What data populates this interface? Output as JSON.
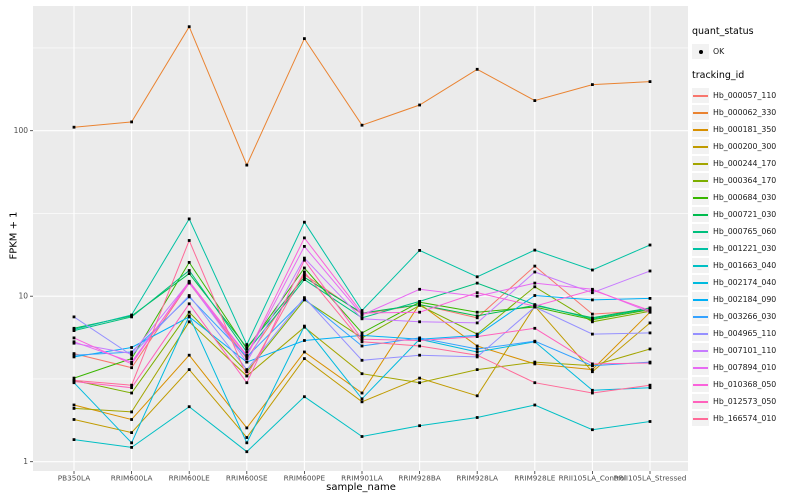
{
  "chart_data": {
    "type": "line",
    "title": "",
    "xlabel": "sample_name",
    "ylabel": "FPKM + 1",
    "y_scale": "log10",
    "ylim": [
      1,
      568
    ],
    "y_ticks": [
      1,
      10,
      100
    ],
    "y_tick_labels": [
      "1",
      "10",
      "100"
    ],
    "y_minor_gridlines": [
      3.162,
      31.62,
      316.2
    ],
    "grid": true,
    "panel_bg": "#EBEBEB",
    "grid_color": "#FFFFFF",
    "point_color": "#000000",
    "tick_label_color": "#4D4D4D",
    "legend_position": "right",
    "categories": [
      "PB350LA",
      "RRIM600LA",
      "RRIM600LE",
      "RRIM600SE",
      "RRIM600PE",
      "RRIM901LA",
      "RRIM928BA",
      "RRIM928LA",
      "RRIM928LE",
      "RRII105LA_Control",
      "RRII105LA_Stressed"
    ],
    "series": [
      {
        "name": "Hb_000057_110",
        "color": "#F8766D",
        "values": [
          4.5,
          3.7,
          12.0,
          4.2,
          13.5,
          7.8,
          8.9,
          7.4,
          15.2,
          7.8,
          8.2
        ]
      },
      {
        "name": "Hb_000062_330",
        "color": "#EA8331",
        "values": [
          105,
          113,
          425,
          62,
          360,
          108,
          143,
          235,
          152,
          190,
          198
        ]
      },
      {
        "name": "Hb_000181_350",
        "color": "#D89000",
        "values": [
          2.2,
          1.8,
          4.4,
          1.6,
          4.6,
          2.6,
          9.0,
          5.0,
          3.9,
          3.6,
          8.0
        ]
      },
      {
        "name": "Hb_000200_300",
        "color": "#C09B00",
        "values": [
          1.8,
          1.5,
          3.6,
          1.4,
          4.2,
          2.3,
          3.2,
          2.5,
          8.7,
          3.5,
          6.9
        ]
      },
      {
        "name": "Hb_000244_170",
        "color": "#A3A500",
        "values": [
          2.1,
          2.0,
          7.0,
          3.3,
          6.5,
          3.4,
          3.0,
          3.6,
          4.0,
          3.8,
          4.8
        ]
      },
      {
        "name": "Hb_000364_170",
        "color": "#7CAE00",
        "values": [
          3.1,
          2.6,
          8.0,
          3.5,
          9.5,
          5.6,
          8.8,
          5.9,
          11.4,
          7.0,
          8.1
        ]
      },
      {
        "name": "Hb_000684_030",
        "color": "#39B600",
        "values": [
          3.2,
          4.2,
          16.0,
          4.8,
          14.8,
          6.0,
          9.2,
          8.0,
          8.6,
          7.2,
          8.3
        ]
      },
      {
        "name": "Hb_000721_030",
        "color": "#00BB4E",
        "values": [
          6.4,
          7.6,
          13.7,
          4.9,
          13.0,
          7.9,
          8.9,
          7.6,
          8.8,
          7.4,
          8.5
        ]
      },
      {
        "name": "Hb_000765_060",
        "color": "#00BF7D",
        "values": [
          6.2,
          7.5,
          14.3,
          4.6,
          12.6,
          7.4,
          9.3,
          12.0,
          8.9,
          7.3,
          8.4
        ]
      },
      {
        "name": "Hb_001221_030",
        "color": "#00C1A3",
        "values": [
          6.3,
          7.7,
          29.3,
          5.1,
          28.0,
          8.2,
          18.9,
          13.1,
          19.0,
          14.4,
          20.4
        ]
      },
      {
        "name": "Hb_001663_040",
        "color": "#00BFC4",
        "values": [
          1.36,
          1.22,
          2.15,
          1.15,
          2.47,
          1.42,
          1.65,
          1.85,
          2.2,
          1.56,
          1.75
        ]
      },
      {
        "name": "Hb_002174_040",
        "color": "#00BADE",
        "values": [
          3.0,
          1.3,
          7.6,
          1.3,
          6.6,
          2.4,
          5.5,
          4.6,
          5.3,
          2.7,
          2.8
        ]
      },
      {
        "name": "Hb_002184_090",
        "color": "#00B0F6",
        "values": [
          4.3,
          4.9,
          7.5,
          4.0,
          5.4,
          5.8,
          5.5,
          5.8,
          10.1,
          9.5,
          9.7
        ]
      },
      {
        "name": "Hb_003266_030",
        "color": "#35A2FF",
        "values": [
          4.4,
          4.6,
          9.9,
          4.3,
          9.6,
          5.0,
          5.6,
          4.8,
          5.35,
          3.8,
          4.0
        ]
      },
      {
        "name": "Hb_004965_110",
        "color": "#9590FF",
        "values": [
          7.5,
          4.4,
          10.1,
          3.6,
          9.8,
          4.1,
          4.4,
          4.3,
          8.6,
          5.9,
          6.0
        ]
      },
      {
        "name": "Hb_007101_110",
        "color": "#C77CFF",
        "values": [
          5.2,
          4.5,
          12.2,
          4.0,
          17.0,
          7.3,
          7.0,
          6.9,
          14.0,
          10.5,
          14.2
        ]
      },
      {
        "name": "Hb_007894_010",
        "color": "#E76BF3",
        "values": [
          5.3,
          4.0,
          12.0,
          4.35,
          20.0,
          7.7,
          11.0,
          10.0,
          12.0,
          11.0,
          8.0
        ]
      },
      {
        "name": "Hb_010368_050",
        "color": "#FA62DB",
        "values": [
          5.6,
          3.9,
          12.3,
          4.4,
          22.5,
          7.9,
          8.0,
          10.5,
          8.7,
          10.9,
          8.2
        ]
      },
      {
        "name": "Hb_012573_050",
        "color": "#FF62BC",
        "values": [
          3.05,
          2.8,
          9.0,
          3.0,
          16.5,
          5.5,
          5.4,
          5.7,
          6.4,
          3.9,
          3.95
        ]
      },
      {
        "name": "Hb_166574_010",
        "color": "#FF6A98",
        "values": [
          3.1,
          2.9,
          21.7,
          3.3,
          14.0,
          5.3,
          5.0,
          4.4,
          3.0,
          2.6,
          2.9
        ]
      }
    ],
    "legend": {
      "quant_status_title": "quant_status",
      "quant_status_items": [
        {
          "label": "OK",
          "marker": "point",
          "color": "#000000"
        }
      ],
      "tracking_id_title": "tracking_id"
    }
  }
}
